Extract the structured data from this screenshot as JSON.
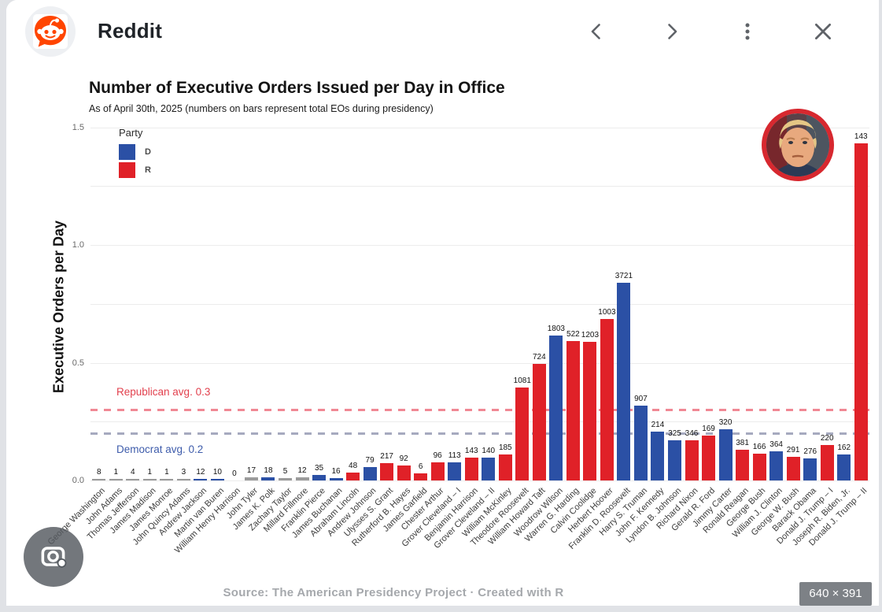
{
  "header": {
    "site_name": "Reddit",
    "icons": {
      "back": "chevron-left",
      "forward": "chevron-right",
      "more": "kebab-menu",
      "close": "x"
    }
  },
  "overlay": {
    "size_badge": "640 × 391"
  },
  "chart_data": {
    "type": "bar",
    "title": "Number of Executive Orders Issued per Day in Office",
    "subtitle": "As of April 30th, 2025 (numbers on bars represent total EOs during presidency)",
    "ylabel": "Executive Orders per Day",
    "xlabel": "",
    "ylim": [
      0,
      1.5
    ],
    "ytick_labels": [
      "0.0",
      "0.5",
      "1.0",
      "1.5"
    ],
    "grid": {
      "show": true,
      "step": 0.25,
      "orientation": "horizontal"
    },
    "legend": {
      "title": "Party",
      "position": "top-left",
      "entries": [
        {
          "label": "D",
          "party": "D"
        },
        {
          "label": "R",
          "party": "R"
        }
      ]
    },
    "party_colors": {
      "D": "#2b50a5",
      "R": "#e02128",
      "other": "#9b9b9b"
    },
    "avg_lines": [
      {
        "label": "Republican avg. 0.3",
        "value": 0.3,
        "line_color": "#f08894",
        "label_color": "#e2414e",
        "style": "dashed",
        "label_position": "above"
      },
      {
        "label": "Democrat avg. 0.2",
        "value": 0.2,
        "line_color": "#a6aabf",
        "label_color": "#3e5cab",
        "style": "dashed",
        "label_position": "below"
      }
    ],
    "caption": "Source: The American Presidency Project  ·  Created with R",
    "bars": [
      {
        "president": "George Washington",
        "party": "other",
        "total_eos": 8,
        "eos_per_day": 0.003
      },
      {
        "president": "John Adams",
        "party": "other",
        "total_eos": 1,
        "eos_per_day": 0.001
      },
      {
        "president": "Thomas Jefferson",
        "party": "other",
        "total_eos": 4,
        "eos_per_day": 0.0014
      },
      {
        "president": "James Madison",
        "party": "other",
        "total_eos": 1,
        "eos_per_day": 0.0003
      },
      {
        "president": "James Monroe",
        "party": "other",
        "total_eos": 1,
        "eos_per_day": 0.0003
      },
      {
        "president": "John Quincy Adams",
        "party": "other",
        "total_eos": 3,
        "eos_per_day": 0.002
      },
      {
        "president": "Andrew Jackson",
        "party": "D",
        "total_eos": 12,
        "eos_per_day": 0.004
      },
      {
        "president": "Martin van Buren",
        "party": "D",
        "total_eos": 10,
        "eos_per_day": 0.007
      },
      {
        "president": "William Henry Harrison",
        "party": "other",
        "total_eos": 0,
        "eos_per_day": 0
      },
      {
        "president": "John Tyler",
        "party": "other",
        "total_eos": 17,
        "eos_per_day": 0.012
      },
      {
        "president": "James K. Polk",
        "party": "D",
        "total_eos": 18,
        "eos_per_day": 0.012
      },
      {
        "president": "Zachary Taylor",
        "party": "other",
        "total_eos": 5,
        "eos_per_day": 0.01
      },
      {
        "president": "Millard Fillmore",
        "party": "other",
        "total_eos": 12,
        "eos_per_day": 0.012
      },
      {
        "president": "Franklin Pierce",
        "party": "D",
        "total_eos": 35,
        "eos_per_day": 0.024
      },
      {
        "president": "James Buchanan",
        "party": "D",
        "total_eos": 16,
        "eos_per_day": 0.011
      },
      {
        "president": "Abraham Lincoln",
        "party": "R",
        "total_eos": 48,
        "eos_per_day": 0.032
      },
      {
        "president": "Andrew Johnson",
        "party": "D",
        "total_eos": 79,
        "eos_per_day": 0.056
      },
      {
        "president": "Ulysses S. Grant",
        "party": "R",
        "total_eos": 217,
        "eos_per_day": 0.074
      },
      {
        "president": "Rutherford B. Hayes",
        "party": "R",
        "total_eos": 92,
        "eos_per_day": 0.063
      },
      {
        "president": "James Garfield",
        "party": "R",
        "total_eos": 6,
        "eos_per_day": 0.03
      },
      {
        "president": "Chester Arthur",
        "party": "R",
        "total_eos": 96,
        "eos_per_day": 0.076
      },
      {
        "president": "Grover Cleveland – I",
        "party": "D",
        "total_eos": 113,
        "eos_per_day": 0.077
      },
      {
        "president": "Benjamin Harrison",
        "party": "R",
        "total_eos": 143,
        "eos_per_day": 0.098
      },
      {
        "president": "Grover Cleveland – II",
        "party": "D",
        "total_eos": 140,
        "eos_per_day": 0.096
      },
      {
        "president": "William McKinley",
        "party": "R",
        "total_eos": 185,
        "eos_per_day": 0.112
      },
      {
        "president": "Theodore Roosevelt",
        "party": "R",
        "total_eos": 1081,
        "eos_per_day": 0.396
      },
      {
        "president": "William Howard Taft",
        "party": "R",
        "total_eos": 724,
        "eos_per_day": 0.496
      },
      {
        "president": "Woodrow Wilson",
        "party": "D",
        "total_eos": 1803,
        "eos_per_day": 0.617
      },
      {
        "president": "Warren G. Harding",
        "party": "R",
        "total_eos": 522,
        "eos_per_day": 0.592
      },
      {
        "president": "Calvin Coolidge",
        "party": "R",
        "total_eos": 1203,
        "eos_per_day": 0.589
      },
      {
        "president": "Herbert Hoover",
        "party": "R",
        "total_eos": 1003,
        "eos_per_day": 0.687
      },
      {
        "president": "Franklin D. Roosevelt",
        "party": "D",
        "total_eos": 3721,
        "eos_per_day": 0.841
      },
      {
        "president": "Harry S. Truman",
        "party": "D",
        "total_eos": 907,
        "eos_per_day": 0.319
      },
      {
        "president": "John F. Kennedy",
        "party": "D",
        "total_eos": 214,
        "eos_per_day": 0.207
      },
      {
        "president": "Lyndon B. Johnson",
        "party": "D",
        "total_eos": 325,
        "eos_per_day": 0.172
      },
      {
        "president": "Richard Nixon",
        "party": "R",
        "total_eos": 346,
        "eos_per_day": 0.171
      },
      {
        "president": "Gerald R. Ford",
        "party": "R",
        "total_eos": 169,
        "eos_per_day": 0.189
      },
      {
        "president": "Jimmy Carter",
        "party": "D",
        "total_eos": 320,
        "eos_per_day": 0.219
      },
      {
        "president": "Ronald Reagan",
        "party": "R",
        "total_eos": 381,
        "eos_per_day": 0.13
      },
      {
        "president": "George Bush",
        "party": "R",
        "total_eos": 166,
        "eos_per_day": 0.114
      },
      {
        "president": "William J. Clinton",
        "party": "D",
        "total_eos": 364,
        "eos_per_day": 0.125
      },
      {
        "president": "George W. Bush",
        "party": "R",
        "total_eos": 291,
        "eos_per_day": 0.1
      },
      {
        "president": "Barack Obama",
        "party": "D",
        "total_eos": 276,
        "eos_per_day": 0.094
      },
      {
        "president": "Donald J. Trump – I",
        "party": "R",
        "total_eos": 220,
        "eos_per_day": 0.151
      },
      {
        "president": "Joseph R. Biden, Jr.",
        "party": "D",
        "total_eos": 162,
        "eos_per_day": 0.111
      },
      {
        "president": "Donald J. Trump – II",
        "party": "R",
        "total_eos": 143,
        "eos_per_day": 1.43
      }
    ]
  }
}
